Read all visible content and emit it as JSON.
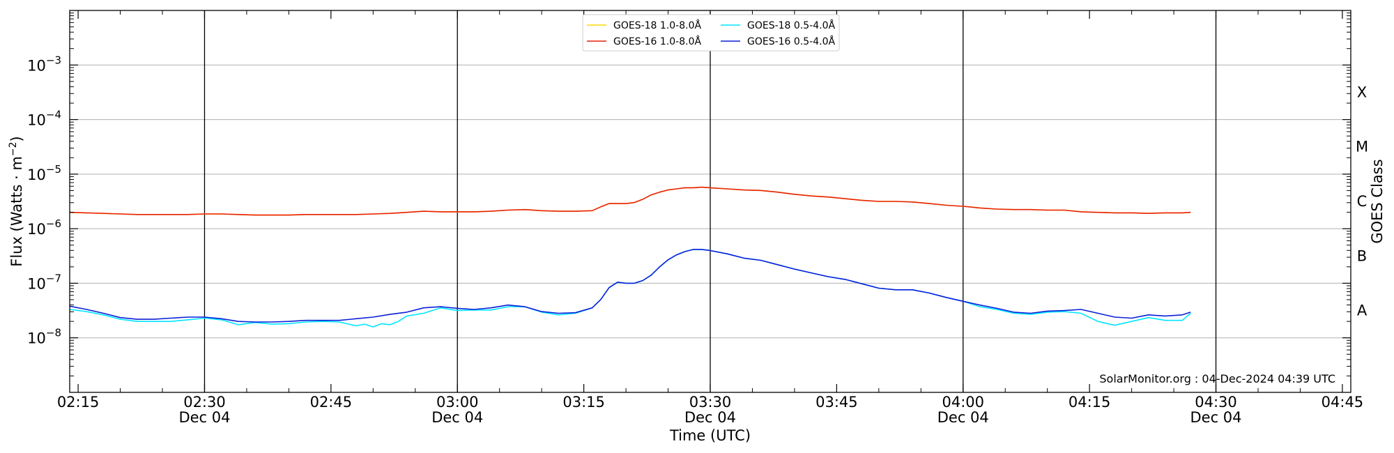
{
  "chart_data": {
    "type": "line",
    "title": "",
    "xlabel": "Time (UTC)",
    "ylabel_main": "Flux (Watts · m",
    "ylabel_exp": "−2",
    "ylabel_close": ")",
    "right_label": "GOES Class",
    "credit": "SolarMonitor.org : 04-Dec-2024 04:39 UTC",
    "y_scale": "log",
    "ylim_exp": [
      -9,
      -2
    ],
    "xlim_min": [
      134,
      286
    ],
    "y_ticks": [
      {
        "exp": -8,
        "base": "10",
        "sup": "−8"
      },
      {
        "exp": -7,
        "base": "10",
        "sup": "−7"
      },
      {
        "exp": -6,
        "base": "10",
        "sup": "−6"
      },
      {
        "exp": -5,
        "base": "10",
        "sup": "−5"
      },
      {
        "exp": -4,
        "base": "10",
        "sup": "−4"
      },
      {
        "exp": -3,
        "base": "10",
        "sup": "−3"
      }
    ],
    "x_ticks": [
      {
        "min": 135,
        "time": "02:15",
        "date": ""
      },
      {
        "min": 150,
        "time": "02:30",
        "date": "Dec 04"
      },
      {
        "min": 165,
        "time": "02:45",
        "date": ""
      },
      {
        "min": 180,
        "time": "03:00",
        "date": "Dec 04"
      },
      {
        "min": 195,
        "time": "03:15",
        "date": ""
      },
      {
        "min": 210,
        "time": "03:30",
        "date": "Dec 04"
      },
      {
        "min": 225,
        "time": "03:45",
        "date": ""
      },
      {
        "min": 240,
        "time": "04:00",
        "date": "Dec 04"
      },
      {
        "min": 255,
        "time": "04:15",
        "date": ""
      },
      {
        "min": 270,
        "time": "04:30",
        "date": "Dec 04"
      },
      {
        "min": 285,
        "time": "04:45",
        "date": ""
      }
    ],
    "vlines_min": [
      150,
      180,
      210,
      240,
      270
    ],
    "goes_classes": [
      {
        "label": "A",
        "exp": -7.5
      },
      {
        "label": "B",
        "exp": -6.5
      },
      {
        "label": "C",
        "exp": -5.5
      },
      {
        "label": "M",
        "exp": -4.5
      },
      {
        "label": "X",
        "exp": -3.5
      }
    ],
    "grid": "horizontal at decades",
    "legend_placement": "top-center",
    "series": [
      {
        "name": "GOES-18 1.0-8.0Å",
        "color": "#ffd700",
        "x_min": [
          134,
          136,
          138,
          140,
          142,
          144,
          146,
          148,
          150,
          152,
          154,
          156,
          158,
          160,
          162,
          164,
          166,
          168,
          170,
          172,
          174,
          176,
          178,
          180,
          182,
          184,
          186,
          188,
          190,
          192,
          194,
          196,
          197,
          198,
          199,
          200,
          201,
          202,
          203,
          204,
          205,
          206,
          207,
          208,
          209,
          210,
          212,
          214,
          216,
          218,
          220,
          222,
          224,
          226,
          228,
          230,
          232,
          234,
          236,
          238,
          240,
          242,
          244,
          246,
          248,
          250,
          252,
          254,
          256,
          258,
          260,
          262,
          264,
          266,
          267
        ],
        "flux_exp": [
          -5.7,
          -5.71,
          -5.72,
          -5.73,
          -5.74,
          -5.74,
          -5.74,
          -5.74,
          -5.73,
          -5.73,
          -5.74,
          -5.75,
          -5.75,
          -5.75,
          -5.74,
          -5.74,
          -5.74,
          -5.74,
          -5.73,
          -5.72,
          -5.7,
          -5.68,
          -5.69,
          -5.69,
          -5.69,
          -5.68,
          -5.66,
          -5.65,
          -5.67,
          -5.68,
          -5.68,
          -5.67,
          -5.6,
          -5.54,
          -5.54,
          -5.54,
          -5.52,
          -5.46,
          -5.38,
          -5.33,
          -5.29,
          -5.27,
          -5.25,
          -5.25,
          -5.24,
          -5.25,
          -5.27,
          -5.29,
          -5.3,
          -5.33,
          -5.37,
          -5.4,
          -5.42,
          -5.45,
          -5.48,
          -5.5,
          -5.5,
          -5.51,
          -5.54,
          -5.57,
          -5.59,
          -5.62,
          -5.64,
          -5.65,
          -5.65,
          -5.66,
          -5.66,
          -5.69,
          -5.7,
          -5.71,
          -5.71,
          -5.72,
          -5.71,
          -5.71,
          -5.7
        ]
      },
      {
        "name": "GOES-16 1.0-8.0Å",
        "color": "#e8210a",
        "x_min": [
          134,
          136,
          138,
          140,
          142,
          144,
          146,
          148,
          150,
          152,
          154,
          156,
          158,
          160,
          162,
          164,
          166,
          168,
          170,
          172,
          174,
          176,
          178,
          180,
          182,
          184,
          186,
          188,
          190,
          192,
          194,
          196,
          197,
          198,
          199,
          200,
          201,
          202,
          203,
          204,
          205,
          206,
          207,
          208,
          209,
          210,
          212,
          214,
          216,
          218,
          220,
          222,
          224,
          226,
          228,
          230,
          232,
          234,
          236,
          238,
          240,
          242,
          244,
          246,
          248,
          250,
          252,
          254,
          256,
          258,
          260,
          262,
          264,
          266,
          267
        ],
        "flux_exp": [
          -5.7,
          -5.71,
          -5.72,
          -5.73,
          -5.74,
          -5.74,
          -5.74,
          -5.74,
          -5.73,
          -5.73,
          -5.74,
          -5.75,
          -5.75,
          -5.75,
          -5.74,
          -5.74,
          -5.74,
          -5.74,
          -5.73,
          -5.72,
          -5.7,
          -5.68,
          -5.69,
          -5.69,
          -5.69,
          -5.68,
          -5.66,
          -5.65,
          -5.67,
          -5.68,
          -5.68,
          -5.67,
          -5.6,
          -5.54,
          -5.54,
          -5.54,
          -5.52,
          -5.46,
          -5.38,
          -5.33,
          -5.29,
          -5.27,
          -5.25,
          -5.25,
          -5.24,
          -5.25,
          -5.27,
          -5.29,
          -5.3,
          -5.33,
          -5.37,
          -5.4,
          -5.42,
          -5.45,
          -5.48,
          -5.5,
          -5.5,
          -5.51,
          -5.54,
          -5.57,
          -5.59,
          -5.62,
          -5.64,
          -5.65,
          -5.65,
          -5.66,
          -5.66,
          -5.69,
          -5.7,
          -5.71,
          -5.71,
          -5.72,
          -5.71,
          -5.71,
          -5.7
        ]
      },
      {
        "name": "GOES-18 0.5-4.0Å",
        "color": "#00e5ff",
        "x_min": [
          134,
          136,
          138,
          140,
          142,
          144,
          146,
          148,
          150,
          152,
          154,
          156,
          158,
          160,
          162,
          164,
          166,
          168,
          169,
          170,
          171,
          172,
          173,
          174,
          176,
          178,
          180,
          182,
          184,
          186,
          188,
          190,
          192,
          194,
          196,
          197,
          198,
          199,
          200,
          201,
          202,
          203,
          204,
          205,
          206,
          207,
          208,
          209,
          210,
          212,
          214,
          216,
          218,
          220,
          222,
          224,
          226,
          228,
          230,
          232,
          234,
          236,
          238,
          240,
          242,
          244,
          246,
          248,
          250,
          252,
          254,
          256,
          258,
          260,
          262,
          264,
          266,
          267
        ],
        "flux_exp": [
          -7.48,
          -7.52,
          -7.58,
          -7.66,
          -7.7,
          -7.7,
          -7.7,
          -7.67,
          -7.64,
          -7.67,
          -7.76,
          -7.72,
          -7.75,
          -7.74,
          -7.71,
          -7.7,
          -7.71,
          -7.78,
          -7.75,
          -7.8,
          -7.74,
          -7.76,
          -7.7,
          -7.6,
          -7.55,
          -7.45,
          -7.5,
          -7.49,
          -7.49,
          -7.43,
          -7.43,
          -7.53,
          -7.58,
          -7.55,
          -7.45,
          -7.3,
          -7.08,
          -6.98,
          -7.0,
          -7.0,
          -6.95,
          -6.85,
          -6.7,
          -6.57,
          -6.48,
          -6.42,
          -6.38,
          -6.38,
          -6.4,
          -6.46,
          -6.54,
          -6.58,
          -6.66,
          -6.74,
          -6.81,
          -6.88,
          -6.93,
          -7.01,
          -7.09,
          -7.12,
          -7.12,
          -7.18,
          -7.26,
          -7.33,
          -7.43,
          -7.48,
          -7.55,
          -7.57,
          -7.53,
          -7.52,
          -7.55,
          -7.7,
          -7.77,
          -7.7,
          -7.63,
          -7.68,
          -7.68,
          -7.55
        ]
      },
      {
        "name": "GOES-16 0.5-4.0Å",
        "color": "#0a1fd8",
        "x_min": [
          134,
          136,
          138,
          140,
          142,
          144,
          146,
          148,
          150,
          152,
          154,
          156,
          158,
          160,
          162,
          164,
          166,
          168,
          170,
          172,
          174,
          176,
          178,
          180,
          182,
          184,
          186,
          188,
          190,
          192,
          194,
          196,
          197,
          198,
          199,
          200,
          201,
          202,
          203,
          204,
          205,
          206,
          207,
          208,
          209,
          210,
          212,
          214,
          216,
          218,
          220,
          222,
          224,
          226,
          228,
          230,
          232,
          234,
          236,
          238,
          240,
          242,
          244,
          246,
          248,
          250,
          252,
          254,
          256,
          258,
          260,
          262,
          264,
          266,
          267
        ],
        "flux_exp": [
          -7.42,
          -7.48,
          -7.55,
          -7.63,
          -7.66,
          -7.66,
          -7.64,
          -7.62,
          -7.62,
          -7.65,
          -7.7,
          -7.71,
          -7.71,
          -7.7,
          -7.68,
          -7.68,
          -7.68,
          -7.65,
          -7.62,
          -7.57,
          -7.53,
          -7.45,
          -7.43,
          -7.46,
          -7.48,
          -7.45,
          -7.4,
          -7.43,
          -7.52,
          -7.55,
          -7.54,
          -7.45,
          -7.3,
          -7.08,
          -6.98,
          -7.0,
          -7.0,
          -6.95,
          -6.85,
          -6.7,
          -6.57,
          -6.48,
          -6.42,
          -6.38,
          -6.38,
          -6.4,
          -6.46,
          -6.54,
          -6.58,
          -6.66,
          -6.74,
          -6.81,
          -6.88,
          -6.93,
          -7.01,
          -7.09,
          -7.12,
          -7.12,
          -7.18,
          -7.26,
          -7.33,
          -7.4,
          -7.46,
          -7.53,
          -7.55,
          -7.51,
          -7.5,
          -7.48,
          -7.55,
          -7.62,
          -7.64,
          -7.58,
          -7.6,
          -7.58,
          -7.53
        ]
      }
    ]
  }
}
